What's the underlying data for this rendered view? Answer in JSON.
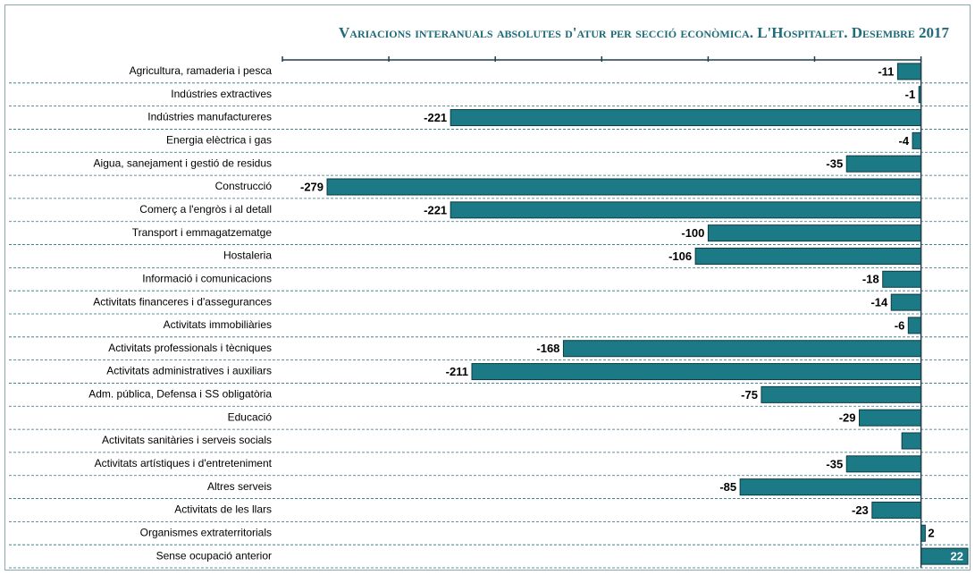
{
  "chart_data": {
    "type": "barh",
    "title": "Variacions interanuals absolutes d'atur per secció econòmica. L'Hospitalet. Desembre 2017",
    "categories": [
      "Agricultura, ramaderia i pesca",
      "Indústries extractives",
      "Indústries manufactureres",
      "Energia elèctrica i gas",
      "Aigua, sanejament i gestió de residus",
      "Construcció",
      "Comerç a l'engròs i al detall",
      "Transport i emmagatzematge",
      "Hostaleria",
      "Informació i comunicacions",
      "Activitats financeres i d'assegurances",
      "Activitats immobiliàries",
      "Activitats professionals i tècniques",
      "Activitats administratives i auxiliars",
      "Adm. pública, Defensa i SS obligatòria",
      "Educació",
      "Activitats sanitàries i serveis socials",
      "Activitats artístiques i d'entreteniment",
      "Altres serveis",
      "Activitats de les llars",
      "Organismes extraterritorials",
      "Sense ocupació anterior"
    ],
    "values": [
      -11,
      -1,
      -221,
      -4,
      -35,
      -279,
      -221,
      -100,
      -106,
      -18,
      -14,
      -6,
      -168,
      -211,
      -75,
      -29,
      -9,
      -35,
      -85,
      -23,
      2,
      22
    ],
    "value_labels": [
      "-11",
      "-1",
      "-221",
      "-4",
      "-35",
      "-279",
      "-221",
      "-100",
      "-106",
      "-18",
      "-14",
      "-6",
      "-168",
      "-211",
      "-75",
      "-29",
      null,
      "-35",
      "-85",
      "-23",
      "2",
      "22"
    ],
    "color": "#1b7a85",
    "xlim": [
      -300,
      22
    ],
    "xticks": [
      -300,
      -250,
      -200,
      -150,
      -100,
      -50,
      0
    ]
  }
}
